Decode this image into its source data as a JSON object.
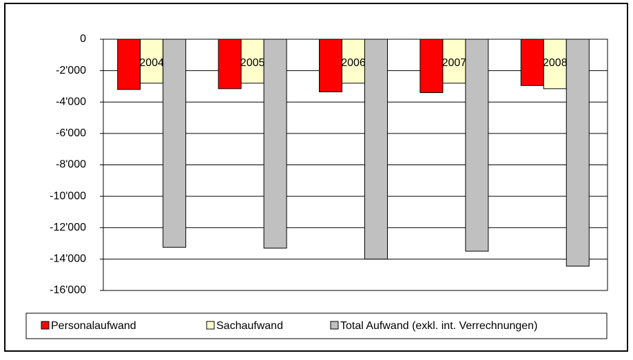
{
  "chart_data": {
    "type": "bar",
    "categories": [
      "2004",
      "2005",
      "2006",
      "2007",
      "2008"
    ],
    "series": [
      {
        "name": "Personalaufwand",
        "color": "#ff0000",
        "values": [
          -3200,
          -3150,
          -3350,
          -3400,
          -2950
        ]
      },
      {
        "name": "Sachaufwand",
        "color": "#ffffcc",
        "values": [
          -2800,
          -2800,
          -2800,
          -2800,
          -3150
        ]
      },
      {
        "name": "Total Aufwand (exkl. int. Verrechnungen)",
        "color": "#c0c0c0",
        "values": [
          -13250,
          -13300,
          -14000,
          -13500,
          -14450
        ]
      }
    ],
    "ylim": [
      -16000,
      0
    ],
    "yticks": [
      {
        "value": -16000,
        "label": "-16'000"
      },
      {
        "value": -14000,
        "label": "-14'000"
      },
      {
        "value": -12000,
        "label": "-12'000"
      },
      {
        "value": -10000,
        "label": "-10'000"
      },
      {
        "value": -8000,
        "label": "-8'000"
      },
      {
        "value": -6000,
        "label": "-6'000"
      },
      {
        "value": -4000,
        "label": "-4'000"
      },
      {
        "value": -2000,
        "label": "-2'000"
      },
      0
    ],
    "grid": true,
    "legend": "bottom"
  }
}
